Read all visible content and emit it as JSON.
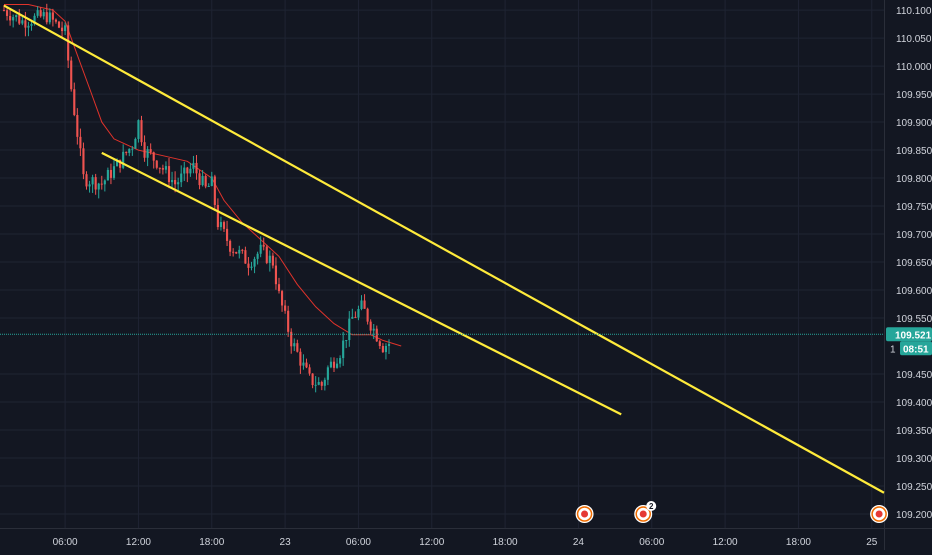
{
  "chart_data": {
    "type": "candlestick",
    "title": "",
    "xlabel": "",
    "ylabel": "",
    "ylim": [
      109.175,
      110.118
    ],
    "time_range_hours": [
      1.0,
      73.0
    ],
    "y_ticks": [
      "110.100",
      "110.050",
      "110.000",
      "109.950",
      "109.900",
      "109.850",
      "109.800",
      "109.750",
      "109.700",
      "109.650",
      "109.600",
      "109.550",
      "109.450",
      "109.400",
      "109.350",
      "109.300",
      "109.250",
      "109.200"
    ],
    "x_ticks": [
      {
        "label": "06:00",
        "hour": 6
      },
      {
        "label": "12:00",
        "hour": 12
      },
      {
        "label": "18:00",
        "hour": 18
      },
      {
        "label": "23",
        "hour": 24
      },
      {
        "label": "06:00",
        "hour": 30
      },
      {
        "label": "12:00",
        "hour": 36
      },
      {
        "label": "18:00",
        "hour": 42
      },
      {
        "label": "24",
        "hour": 48
      },
      {
        "label": "06:00",
        "hour": 54
      },
      {
        "label": "12:00",
        "hour": 60
      },
      {
        "label": "18:00",
        "hour": 66
      },
      {
        "label": "25",
        "hour": 72
      }
    ],
    "grid": true,
    "last_price": "109.521",
    "countdown": "08:51",
    "price_line": 109.521,
    "price_line_partial_label": "1",
    "waypoints": [
      [
        1.0,
        110.1
      ],
      [
        2.5,
        110.08
      ],
      [
        4.5,
        110.09
      ],
      [
        6.0,
        110.06
      ],
      [
        6.5,
        109.96
      ],
      [
        7.5,
        109.8
      ],
      [
        9.0,
        109.79
      ],
      [
        10.5,
        109.83
      ],
      [
        11.5,
        109.86
      ],
      [
        12.0,
        109.9
      ],
      [
        12.5,
        109.85
      ],
      [
        13.5,
        109.83
      ],
      [
        15.0,
        109.79
      ],
      [
        16.5,
        109.82
      ],
      [
        17.5,
        109.78
      ],
      [
        18.0,
        109.79
      ],
      [
        18.5,
        109.72
      ],
      [
        19.5,
        109.68
      ],
      [
        21.0,
        109.65
      ],
      [
        22.0,
        109.67
      ],
      [
        23.0,
        109.65
      ],
      [
        23.5,
        109.59
      ],
      [
        24.5,
        109.51
      ],
      [
        26.0,
        109.44
      ],
      [
        27.0,
        109.43
      ],
      [
        27.5,
        109.46
      ],
      [
        28.5,
        109.49
      ],
      [
        29.5,
        109.55
      ],
      [
        30.3,
        109.57
      ],
      [
        31.0,
        109.54
      ],
      [
        32.0,
        109.5
      ],
      [
        32.5,
        109.505
      ]
    ],
    "ma_waypoints": [
      [
        1.0,
        110.11
      ],
      [
        3.0,
        110.11
      ],
      [
        5.0,
        110.1
      ],
      [
        6.0,
        110.08
      ],
      [
        7.0,
        110.02
      ],
      [
        8.0,
        109.96
      ],
      [
        9.0,
        109.9
      ],
      [
        10.0,
        109.87
      ],
      [
        12.0,
        109.85
      ],
      [
        14.0,
        109.84
      ],
      [
        16.0,
        109.83
      ],
      [
        18.0,
        109.8
      ],
      [
        19.0,
        109.76
      ],
      [
        20.5,
        109.72
      ],
      [
        22.0,
        109.69
      ],
      [
        23.5,
        109.66
      ],
      [
        25.0,
        109.61
      ],
      [
        26.5,
        109.57
      ],
      [
        28.0,
        109.54
      ],
      [
        29.5,
        109.52
      ],
      [
        31.0,
        109.52
      ],
      [
        32.0,
        109.51
      ],
      [
        33.5,
        109.5
      ]
    ],
    "trendlines": [
      {
        "color": "#ffeb3b",
        "from": [
          1.0,
          110.108
        ],
        "to": [
          73.0,
          109.238
        ]
      },
      {
        "color": "#ffeb3b",
        "from": [
          9.0,
          109.845
        ],
        "to": [
          51.5,
          109.378
        ]
      }
    ],
    "event_markers": [
      {
        "hour": 48.5,
        "badge": ""
      },
      {
        "hour": 53.3,
        "badge": "2"
      },
      {
        "hour": 72.6,
        "badge": ""
      }
    ],
    "colors": {
      "background": "#131722",
      "grid": "#1f2433",
      "up": "#26a69a",
      "down": "#ef5350",
      "ma": "#e0332b",
      "trendline": "#ffeb3b",
      "price_line": "#26a69a",
      "axis_text": "#d1d4dc"
    }
  }
}
